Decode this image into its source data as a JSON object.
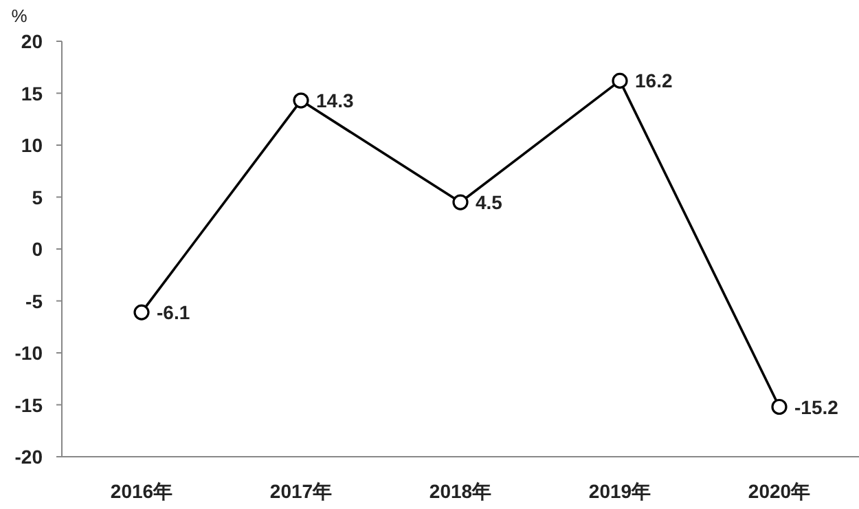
{
  "chart_data": {
    "type": "line",
    "ylabel": "%",
    "categories": [
      "2016年",
      "2017年",
      "2018年",
      "2019年",
      "2020年"
    ],
    "values": [
      -6.1,
      14.3,
      4.5,
      16.2,
      -15.2
    ],
    "color": "#000000",
    "ylim": [
      -20,
      20
    ],
    "yticks": [
      -20,
      -15,
      -10,
      -5,
      0,
      5,
      10,
      15,
      20
    ],
    "marker": "circle",
    "line_style": "solid",
    "data_labels": true,
    "grid": false
  }
}
